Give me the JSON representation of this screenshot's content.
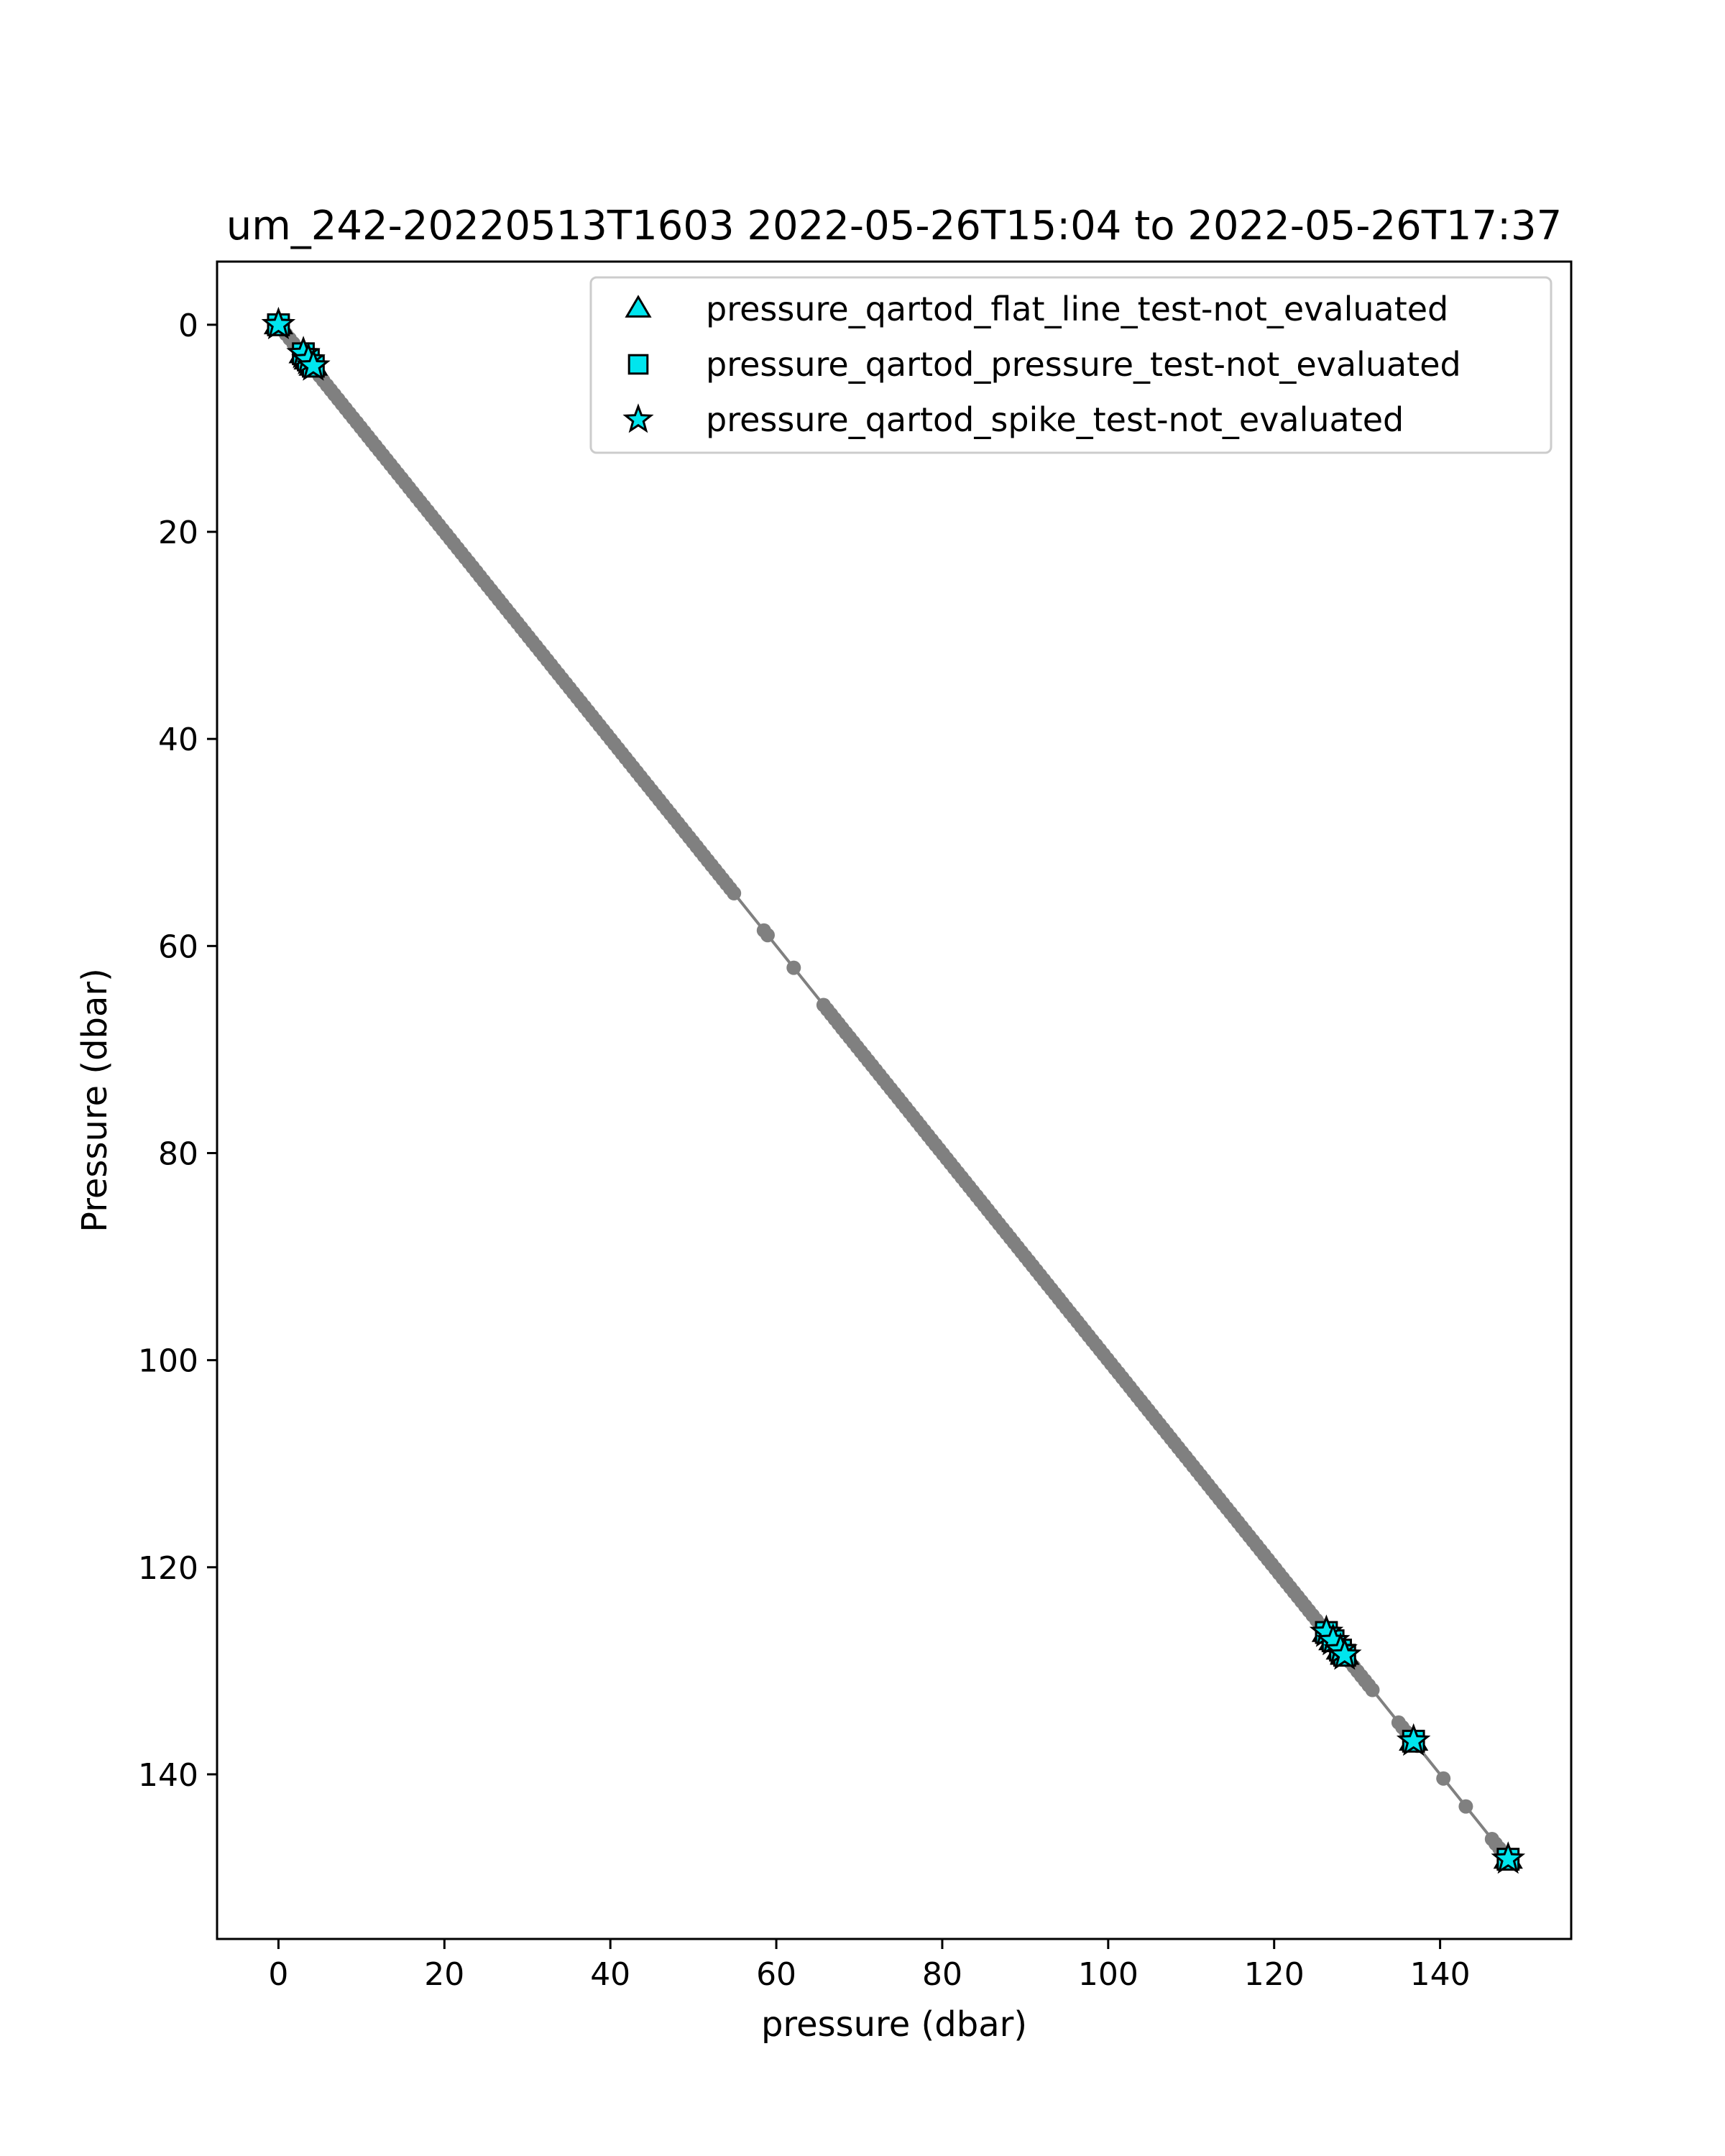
{
  "chart_data": {
    "type": "scatter",
    "title": "um_242-20220513T1603 2022-05-26T15:04 to 2022-05-26T17:37",
    "xlabel": "pressure (dbar)",
    "ylabel": "Pressure (dbar)",
    "xlim": [
      -7.4,
      155.8
    ],
    "ylim": [
      155.9,
      -6.1
    ],
    "y_inverted": true,
    "grid": false,
    "legend_position": "top-right",
    "xticks": [
      0,
      20,
      40,
      60,
      80,
      100,
      120,
      140
    ],
    "yticks": [
      0,
      20,
      40,
      60,
      80,
      100,
      120,
      140
    ],
    "xtick_labels": [
      "0",
      "20",
      "40",
      "60",
      "80",
      "100",
      "120",
      "140"
    ],
    "ytick_labels": [
      "0",
      "20",
      "40",
      "60",
      "80",
      "100",
      "120",
      "140"
    ],
    "colors": {
      "profile": "#808080",
      "flag_fill": "#00e5ee",
      "flag_edge": "#000000"
    },
    "profile": {
      "x_start": 0,
      "x_end": 148.2,
      "step": 0.45,
      "note_gaps": [
        [
          55,
          58.5
        ],
        [
          59,
          62
        ],
        [
          62.5,
          65.5
        ],
        [
          132,
          135
        ],
        [
          137.5,
          140
        ],
        [
          140.5,
          143
        ],
        [
          143.5,
          146
        ]
      ]
    },
    "series": [
      {
        "name": "pressure_qartod_flat_line_test-not_evaluated",
        "marker": "triangle",
        "points": [
          [
            0,
            0
          ],
          [
            3,
            2.8
          ],
          [
            3.6,
            3.4
          ],
          [
            4.2,
            4
          ],
          [
            126.3,
            126.3
          ],
          [
            127.1,
            127.1
          ],
          [
            128,
            128
          ],
          [
            128.5,
            128.5
          ],
          [
            136.8,
            136.8
          ],
          [
            148.2,
            148.2
          ]
        ]
      },
      {
        "name": "pressure_qartod_pressure_test-not_evaluated",
        "marker": "square",
        "points": [
          [
            0,
            0
          ],
          [
            3,
            2.8
          ],
          [
            3.6,
            3.4
          ],
          [
            4.2,
            4
          ],
          [
            126.3,
            126.3
          ],
          [
            127.1,
            127.1
          ],
          [
            128,
            128
          ],
          [
            128.5,
            128.5
          ],
          [
            136.8,
            136.8
          ],
          [
            148.2,
            148.2
          ]
        ]
      },
      {
        "name": "pressure_qartod_spike_test-not_evaluated",
        "marker": "star",
        "points": [
          [
            0,
            0
          ],
          [
            3,
            2.8
          ],
          [
            3.6,
            3.4
          ],
          [
            4.2,
            4
          ],
          [
            126.3,
            126.3
          ],
          [
            127.1,
            127.1
          ],
          [
            128,
            128
          ],
          [
            128.5,
            128.5
          ],
          [
            136.8,
            136.8
          ],
          [
            148.2,
            148.2
          ]
        ]
      }
    ]
  }
}
